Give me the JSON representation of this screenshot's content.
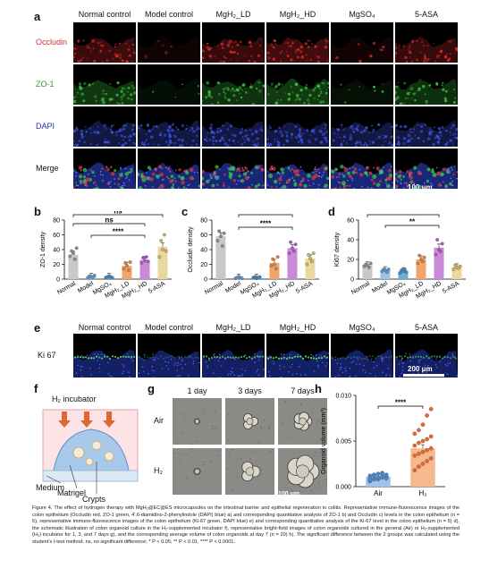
{
  "panel_a": {
    "letter": "a",
    "columns": [
      "Normal control",
      "Model control",
      "MgH₂_LD",
      "MgH₂_HD",
      "MgSO₄",
      "5-ASA"
    ],
    "rows": [
      {
        "label": "Occludin",
        "color": "#d32f2f"
      },
      {
        "label": "ZO-1",
        "color": "#2e9d3a"
      },
      {
        "label": "DAPI",
        "color": "#2233aa"
      },
      {
        "label": "Merge",
        "color": "#111111"
      }
    ],
    "scale_label": "100 μm"
  },
  "panel_e": {
    "letter": "e",
    "columns": [
      "Normal control",
      "Model control",
      "MgH₂_LD",
      "MgH₂_HD",
      "MgSO₄",
      "5-ASA"
    ],
    "row_label": "Ki 67",
    "scale_label": "200 μm"
  },
  "panel_f": {
    "letter": "f",
    "incubator": "H₂ incubator",
    "medium": "Medium",
    "matrigel": "Matrigel",
    "crypts": "Crypts"
  },
  "panel_g": {
    "letter": "g",
    "columns": [
      "1 day",
      "3 days",
      "7 days"
    ],
    "rows": [
      "Air",
      "H₂"
    ],
    "scale_label": "100 μm"
  },
  "chart_data": [
    {
      "panel": "b",
      "type": "bar",
      "ylabel": "ZO-1 density",
      "ylim": [
        0,
        80
      ],
      "yticks": [
        "0",
        "20",
        "40",
        "60",
        "80"
      ],
      "categories": [
        "Normal",
        "Model",
        "MgSO₄",
        "MgH₂_LD",
        "MgH₂_HD",
        "5-ASA"
      ],
      "values": [
        33,
        3,
        3,
        18,
        26,
        44
      ],
      "colors": [
        "#c8c8c8",
        "#9ec3e6",
        "#6aaed6",
        "#f2a46d",
        "#c98ad8",
        "#e9d9a0"
      ],
      "points": [
        [
          31,
          38,
          35,
          27,
          42
        ],
        [
          2,
          4,
          3,
          2,
          5
        ],
        [
          2,
          3,
          4,
          3,
          2
        ],
        [
          14,
          22,
          18,
          12,
          23
        ],
        [
          22,
          29,
          25,
          30,
          24
        ],
        [
          30,
          52,
          40,
          60,
          38
        ]
      ],
      "sig": [
        {
          "from": 0,
          "to": 5,
          "label": "ns"
        },
        {
          "from": 0,
          "to": 4,
          "label": "ns"
        },
        {
          "from": 1,
          "to": 4,
          "label": "****"
        }
      ]
    },
    {
      "panel": "c",
      "type": "bar",
      "ylabel": "Occludin density",
      "ylim": [
        0,
        80
      ],
      "yticks": [
        "0",
        "20",
        "40",
        "60",
        "80"
      ],
      "categories": [
        "Normal",
        "Model",
        "MgSO₄",
        "MgH₂_LD",
        "MgH₂_HD",
        "5-ASA"
      ],
      "values": [
        58,
        2,
        2,
        22,
        42,
        28
      ],
      "colors": [
        "#c8c8c8",
        "#9ec3e6",
        "#6aaed6",
        "#f2a46d",
        "#c98ad8",
        "#e9d9a0"
      ],
      "points": [
        [
          52,
          65,
          58,
          45,
          62
        ],
        [
          1,
          2,
          3,
          2,
          1
        ],
        [
          2,
          3,
          1,
          2,
          3
        ],
        [
          18,
          27,
          20,
          14,
          30
        ],
        [
          35,
          50,
          42,
          38,
          47
        ],
        [
          20,
          33,
          28,
          24,
          35
        ]
      ],
      "sig": [
        {
          "from": 1,
          "to": 4,
          "label": "*"
        },
        {
          "from": 1,
          "to": 4,
          "label": "****"
        }
      ]
    },
    {
      "panel": "d",
      "type": "bar",
      "ylabel": "Ki67 density",
      "ylim": [
        0,
        60
      ],
      "yticks": [
        "0",
        "20",
        "40",
        "60"
      ],
      "categories": [
        "Normal",
        "Model",
        "MgSO₄",
        "MgH₂_LD",
        "MgH₂_HD",
        "5-ASA"
      ],
      "values": [
        14,
        9,
        8,
        20,
        32,
        12
      ],
      "colors": [
        "#c8c8c8",
        "#9ec3e6",
        "#6aaed6",
        "#f2a46d",
        "#c98ad8",
        "#e9d9a0"
      ],
      "points": [
        [
          13,
          15,
          14,
          12,
          16
        ],
        [
          8,
          10,
          9,
          7,
          10
        ],
        [
          6,
          9,
          8,
          10,
          7
        ],
        [
          16,
          24,
          20,
          18,
          22
        ],
        [
          25,
          40,
          30,
          28,
          36
        ],
        [
          10,
          14,
          12,
          11,
          13
        ]
      ],
      "sig": [
        {
          "from": 0,
          "to": 4,
          "label": "**"
        },
        {
          "from": 1,
          "to": 4,
          "label": "**"
        }
      ]
    },
    {
      "panel": "h",
      "type": "bar",
      "ylabel": "Organoid volume (mm³)",
      "ylim": [
        0,
        0.01
      ],
      "yticks": [
        "0.000",
        "0.005",
        "0.010"
      ],
      "categories": [
        "Air",
        "H₂"
      ],
      "values": [
        0.0011,
        0.0042
      ],
      "colors": [
        "#9ec3e6",
        "#f6b98e"
      ],
      "points": [
        [
          0.0006,
          0.0008,
          0.0009,
          0.001,
          0.0011,
          0.0012,
          0.0013,
          0.0014,
          0.0015,
          0.001,
          0.0009,
          0.0012,
          0.0008,
          0.0011,
          0.0013,
          0.0007,
          0.0012,
          0.001,
          0.0014,
          0.0009
        ],
        [
          0.0018,
          0.0022,
          0.0025,
          0.0028,
          0.0031,
          0.0034,
          0.0036,
          0.0038,
          0.004,
          0.0042,
          0.0045,
          0.0048,
          0.005,
          0.0052,
          0.0055,
          0.0058,
          0.0062,
          0.0068,
          0.0078,
          0.0085
        ]
      ],
      "sig": [
        {
          "from": 0,
          "to": 1,
          "label": "****"
        }
      ]
    }
  ],
  "caption": "Figure 4.  The effect of hydrogen therapy with MgH₂@EC@ES microcapsules on the intestinal barrier and epithelial regeneration in colitis. Representative immune-fluorescence images of the colon epithelium (Occludin red, ZO-1 green, 4′,6-diamidino-2-phenylindole (DAPI) blue) a) and corresponding quantitative analysis of ZO-1 b) and Occludin c) levels in the colon epithelium (n = 5), representative immune-fluorescence images of the colon epithelium (Ki-67 green, DAPI blue) e) and corresponding quantitative analysis of the Ki-67 level in the colon epithelium (n = 5) d), the schematic illustration of colon organoid culture in the H₂-supplemented incubator f), representative bright-field images of colon organoids cultured in the general (Air) or H₂-supplemented (H₂) incubator for 1, 3, and 7 days g), and the corresponding average volume of colon organoids at day 7 (n = 20) h). The significant difference between the 2 groups was calculated using the student’s t-test method. ns, no significant difference; * P < 0.05; ** P < 0.01, **** P < 0.0001."
}
